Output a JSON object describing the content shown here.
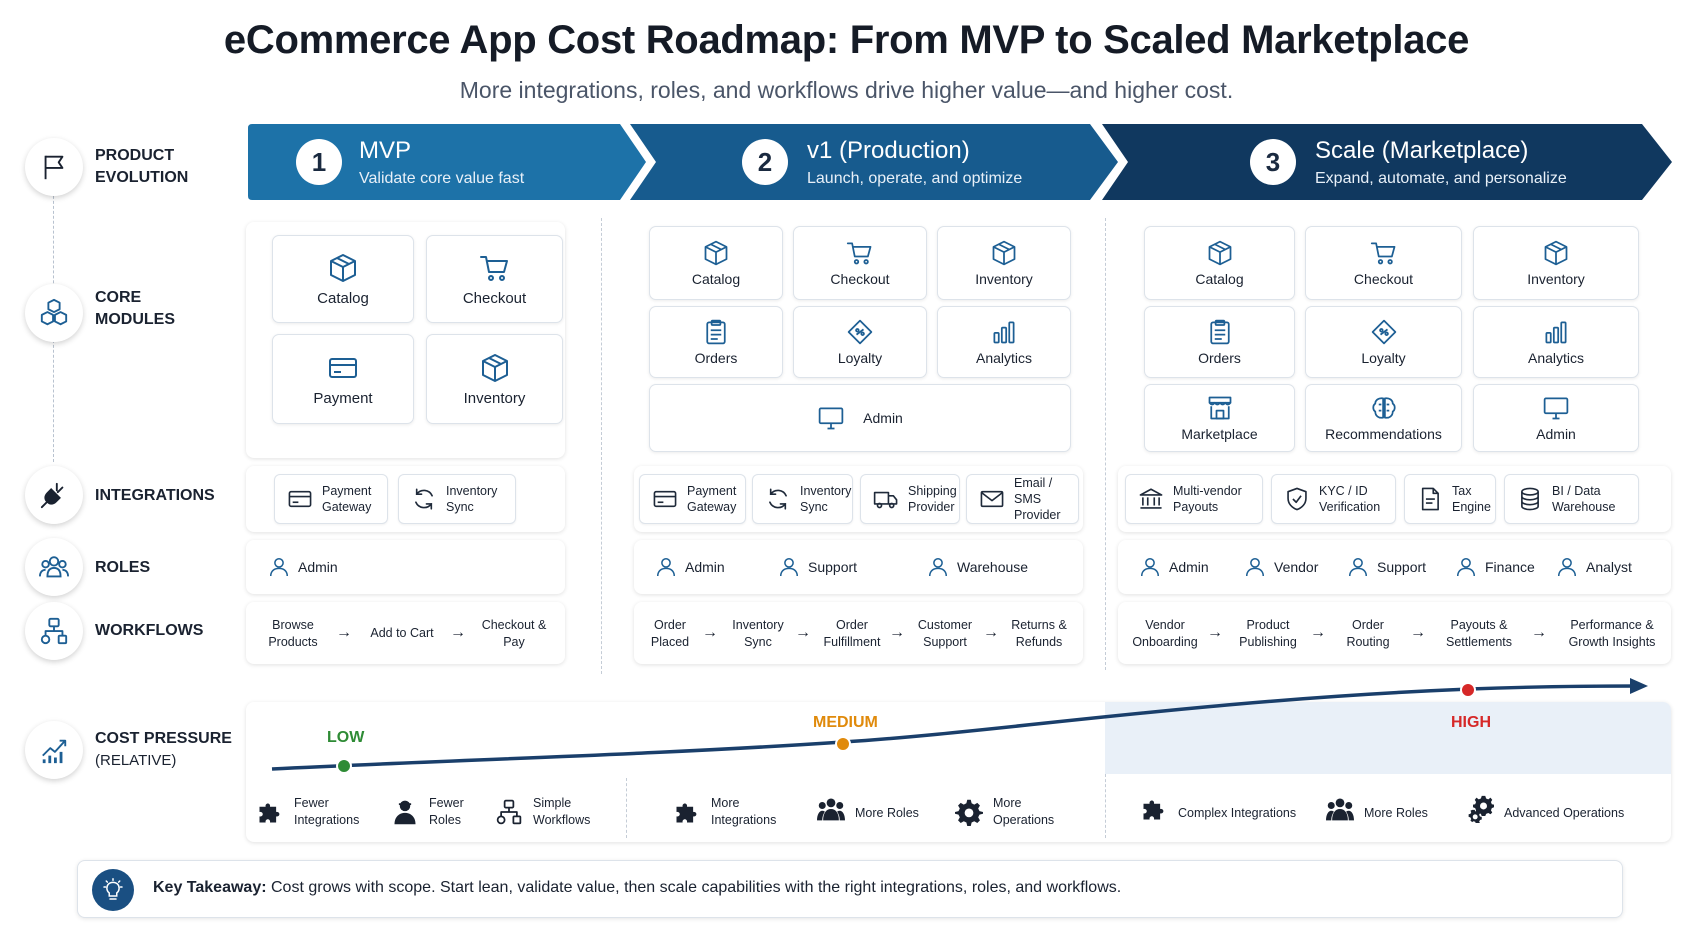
{
  "title": "eCommerce App Cost Roadmap: From MVP to Scaled Marketplace",
  "subtitle": "More integrations, roles, and workflows drive higher value—and higher cost.",
  "rows": {
    "product_evolution": [
      "PRODUCT",
      "EVOLUTION"
    ],
    "core_modules": [
      "CORE",
      "MODULES"
    ],
    "integrations": "INTEGRATIONS",
    "roles": "ROLES",
    "workflows": "WORKFLOWS",
    "cost_pressure": "COST PRESSURE",
    "cost_pressure_sub": "(RELATIVE)"
  },
  "stages": [
    {
      "num": "1",
      "title": "MVP",
      "subtitle": "Validate core value fast",
      "modules": [
        "Catalog",
        "Checkout",
        "Payment",
        "Inventory"
      ],
      "integrations": [
        [
          "Payment",
          "Gateway"
        ],
        [
          "Inventory",
          "Sync"
        ]
      ],
      "roles": [
        "Admin"
      ],
      "workflows": [
        [
          "Browse",
          "Products"
        ],
        [
          "Add to Cart"
        ],
        [
          "Checkout &",
          "Pay"
        ]
      ],
      "cost_level": "LOW",
      "cost_items": [
        [
          "Fewer",
          "Integrations"
        ],
        [
          "Fewer",
          "Roles"
        ],
        [
          "Simple",
          "Workflows"
        ]
      ]
    },
    {
      "num": "2",
      "title": "v1 (Production)",
      "subtitle": "Launch, operate, and optimize",
      "modules": [
        "Catalog",
        "Checkout",
        "Inventory",
        "Orders",
        "Loyalty",
        "Analytics",
        "Admin"
      ],
      "integrations": [
        [
          "Payment",
          "Gateway"
        ],
        [
          "Inventory",
          "Sync"
        ],
        [
          "Shipping",
          "Provider"
        ],
        [
          "Email / SMS",
          "Provider"
        ]
      ],
      "roles": [
        "Admin",
        "Support",
        "Warehouse"
      ],
      "workflows": [
        [
          "Order",
          "Placed"
        ],
        [
          "Inventory",
          "Sync"
        ],
        [
          "Order",
          "Fulfillment"
        ],
        [
          "Customer",
          "Support"
        ],
        [
          "Returns &",
          "Refunds"
        ]
      ],
      "cost_level": "MEDIUM",
      "cost_items": [
        [
          "More",
          "Integrations"
        ],
        [
          "More Roles"
        ],
        [
          "More",
          "Operations"
        ]
      ]
    },
    {
      "num": "3",
      "title": "Scale (Marketplace)",
      "subtitle": "Expand, automate, and personalize",
      "modules": [
        "Catalog",
        "Checkout",
        "Inventory",
        "Orders",
        "Loyalty",
        "Analytics",
        "Marketplace",
        "Recommendations",
        "Admin"
      ],
      "integrations": [
        [
          "Multi-vendor",
          "Payouts"
        ],
        [
          "KYC / ID",
          "Verification"
        ],
        [
          "Tax",
          "Engine"
        ],
        [
          "BI / Data",
          "Warehouse"
        ]
      ],
      "roles": [
        "Admin",
        "Vendor",
        "Support",
        "Finance",
        "Analyst"
      ],
      "workflows": [
        [
          "Vendor",
          "Onboarding"
        ],
        [
          "Product",
          "Publishing"
        ],
        [
          "Order",
          "Routing"
        ],
        [
          "Payouts &",
          "Settlements"
        ],
        [
          "Performance &",
          "Growth Insights"
        ]
      ],
      "cost_level": "HIGH",
      "cost_items": [
        [
          "Complex Integrations"
        ],
        [
          "More Roles"
        ],
        [
          "Advanced Operations"
        ]
      ]
    }
  ],
  "takeaway": {
    "label": "Key Takeaway:",
    "text": "Cost grows with scope. Start lean, validate value, then scale capabilities with the right integrations, roles, and workflows."
  },
  "colors": {
    "stage1": "#1d72a8",
    "stage2": "#175b8e",
    "stage3": "#10385f",
    "low": "#2e8b35",
    "medium": "#e08a0b",
    "high": "#d62828",
    "curve": "#1a3f6b"
  }
}
